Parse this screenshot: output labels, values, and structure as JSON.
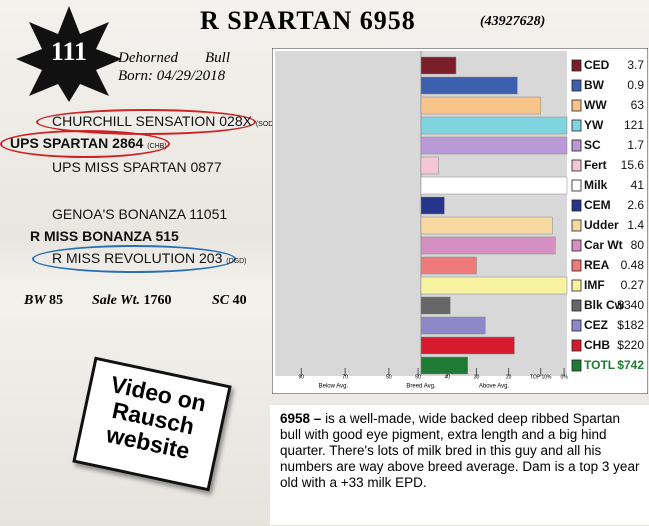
{
  "header": {
    "lot": "111",
    "title": "R SPARTAN 6958",
    "reg": "(43927628)",
    "horns": "Dehorned",
    "sex": "Bull",
    "born": "Born: 04/29/2018"
  },
  "pedigree": [
    "CHURCHILL SENSATION 028X",
    "UPS SPARTAN 2864",
    "UPS MISS SPARTAN 0877",
    "GENOA'S BONANZA 11051",
    "R MISS BONANZA 515",
    "R MISS REVOLUTION 203"
  ],
  "pedigree_tags": [
    "(SOD)",
    "(CHB)",
    "(DGD)"
  ],
  "stats": [
    {
      "label": "BW",
      "value": "85"
    },
    {
      "label": "Sale Wt.",
      "value": "1760"
    },
    {
      "label": "SC",
      "value": "40"
    }
  ],
  "video": "Video on Rausch website",
  "description": {
    "lead": "6958 –",
    "text": "is a well-made, wide backed deep ribbed Spartan bull with good eye pigment, extra length and a big hind quarter. There's lots of milk bred in this guy and all his numbers are way above breed average. Dam is a top 3 year old with a +33 milk EPD."
  },
  "chart_data": {
    "type": "hbar",
    "categories": [
      "CED",
      "BW",
      "WW",
      "YW",
      "SC",
      "Fert",
      "Milk",
      "CEM",
      "Udder",
      "Car Wt",
      "REA",
      "IMF",
      "Blk Cw",
      "CEZ",
      "CHB",
      "TOTL"
    ],
    "epds": [
      "3.7",
      "0.9",
      "63",
      "121",
      "1.7",
      "15.6",
      "41",
      "2.6",
      "1.4",
      "80",
      "0.48",
      "0.27",
      "$340",
      "$182",
      "$220",
      "$742"
    ],
    "values": [
      62,
      83,
      91,
      100,
      100,
      56,
      100,
      58,
      95,
      96,
      69,
      100,
      60,
      72,
      82,
      66
    ],
    "colors": [
      "#7a1f2a",
      "#3d5fb0",
      "#f9c48a",
      "#7fd4e0",
      "#b99ad6",
      "#f4c6d6",
      "#ffffff",
      "#27348b",
      "#f7d9a0",
      "#d68fc1",
      "#ee7a7a",
      "#f7f3a0",
      "#666666",
      "#8d88c8",
      "#d81b2c",
      "#1f7a33"
    ],
    "xlim": [
      0,
      100
    ],
    "xticks": [
      {
        "value": 9,
        "label": "90"
      },
      {
        "value": 24,
        "label": "70"
      },
      {
        "value": 39,
        "label": "50"
      },
      {
        "value": 49,
        "label": "50"
      },
      {
        "value": 59,
        "label": "40"
      },
      {
        "value": 69,
        "label": "30"
      },
      {
        "value": 80,
        "label": "20"
      },
      {
        "value": 91,
        "label": "TOP 10%"
      },
      {
        "value": 99,
        "label": "0%"
      }
    ],
    "breed_avg": 50,
    "axis_notes": [
      "Below Avg.",
      "Breed Avg.",
      "Above Avg."
    ]
  }
}
